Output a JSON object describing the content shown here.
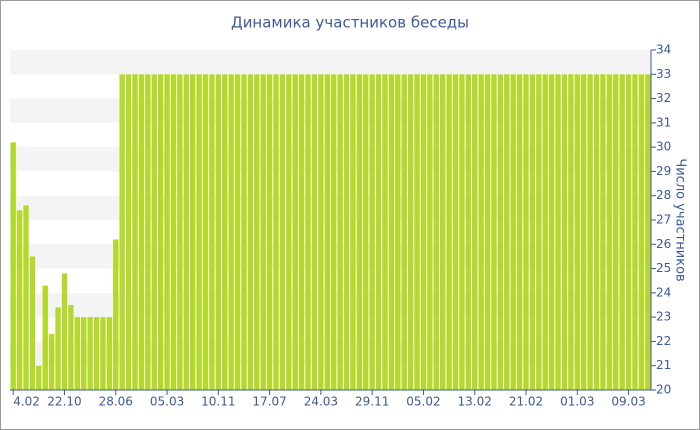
{
  "chart_data": {
    "type": "bar",
    "title": "Динамика участников беседы",
    "y_label": "Число участников",
    "categories": [
      "4.02",
      null,
      null,
      null,
      null,
      null,
      null,
      null,
      "22.10",
      null,
      null,
      null,
      null,
      null,
      null,
      null,
      "28.06",
      null,
      null,
      null,
      null,
      null,
      null,
      null,
      "05.03",
      null,
      null,
      null,
      null,
      null,
      null,
      null,
      "10.11",
      null,
      null,
      null,
      null,
      null,
      null,
      null,
      "17.07",
      null,
      null,
      null,
      null,
      null,
      null,
      null,
      "24.03",
      null,
      null,
      null,
      null,
      null,
      null,
      null,
      "29.11",
      null,
      null,
      null,
      null,
      null,
      null,
      null,
      "05.02",
      null,
      null,
      null,
      null,
      null,
      null,
      null,
      "13.02",
      null,
      null,
      null,
      null,
      null,
      null,
      null,
      "21.02",
      null,
      null,
      null,
      null,
      null,
      null,
      null,
      "01.03",
      null,
      null,
      null,
      null,
      null,
      null,
      null,
      "09.03",
      null,
      null,
      null
    ],
    "values": [
      30.2,
      27.4,
      27.6,
      25.5,
      21.0,
      24.3,
      22.3,
      23.4,
      24.8,
      23.5,
      23,
      23,
      23,
      23,
      23,
      23,
      26.2,
      33,
      33,
      33,
      33,
      33,
      33,
      33,
      33,
      33,
      33,
      33,
      33,
      33,
      33,
      33,
      33,
      33,
      33,
      33,
      33,
      33,
      33,
      33,
      33,
      33,
      33,
      33,
      33,
      33,
      33,
      33,
      33,
      33,
      33,
      33,
      33,
      33,
      33,
      33,
      33,
      33,
      33,
      33,
      33,
      33,
      33,
      33,
      33,
      33,
      33,
      33,
      33,
      33,
      33,
      33,
      33,
      33,
      33,
      33,
      33,
      33,
      33,
      33,
      33,
      33,
      33,
      33,
      33,
      33,
      33,
      33,
      33,
      33,
      33,
      33,
      33,
      33,
      33,
      33,
      33,
      33,
      33,
      33
    ],
    "color": "#b5d82c",
    "ylim": [
      20,
      34
    ],
    "yticks": [
      20,
      21,
      22,
      23,
      24,
      25,
      26,
      27,
      28,
      29,
      30,
      31,
      32,
      33,
      34
    ],
    "grid": true,
    "y_axis_side": "right"
  }
}
